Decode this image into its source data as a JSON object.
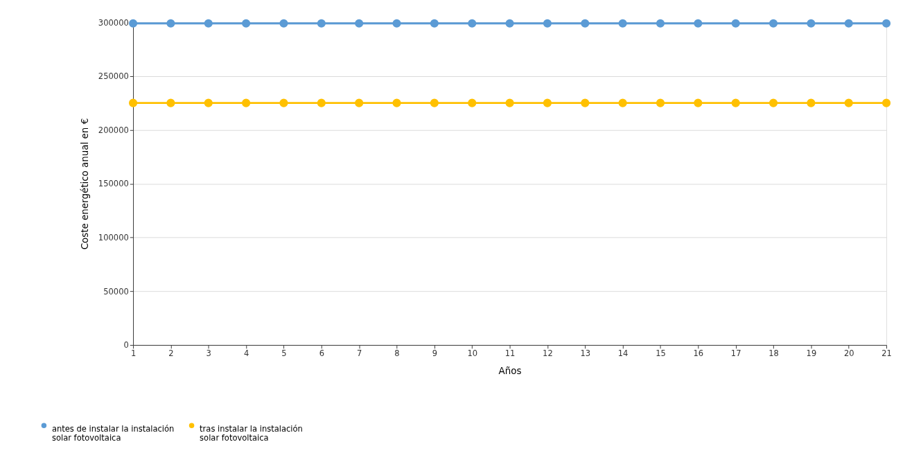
{
  "chart_data": {
    "type": "line",
    "xlabel": "Años",
    "ylabel": "Coste energético anual en €",
    "x": [
      1,
      2,
      3,
      4,
      5,
      6,
      7,
      8,
      9,
      10,
      11,
      12,
      13,
      14,
      15,
      16,
      17,
      18,
      19,
      20,
      21
    ],
    "series": [
      {
        "name": "antes de instalar la instalación solar fotovoltaica",
        "color": "#5b9bd5",
        "values": [
          299000,
          299000,
          299000,
          299000,
          299000,
          299000,
          299000,
          299000,
          299000,
          299000,
          299000,
          299000,
          299000,
          299000,
          299000,
          299000,
          299000,
          299000,
          299000,
          299000,
          299000
        ]
      },
      {
        "name": "tras instalar la instalación solar fotovoltaica",
        "color": "#ffc000",
        "values": [
          225000,
          225000,
          225000,
          225000,
          225000,
          225000,
          225000,
          225000,
          225000,
          225000,
          225000,
          225000,
          225000,
          225000,
          225000,
          225000,
          225000,
          225000,
          225000,
          225000,
          225000
        ]
      }
    ],
    "xlim": [
      1,
      21
    ],
    "xticks": [
      1,
      2,
      3,
      4,
      5,
      6,
      7,
      8,
      9,
      10,
      11,
      12,
      13,
      14,
      15,
      16,
      17,
      18,
      19,
      20,
      21
    ],
    "ylim": [
      0,
      300000
    ],
    "yticks": [
      0,
      50000,
      100000,
      150000,
      200000,
      250000,
      300000
    ],
    "grid": "y",
    "legend": "bottom left",
    "marker": "circle",
    "line_style": "solid"
  }
}
